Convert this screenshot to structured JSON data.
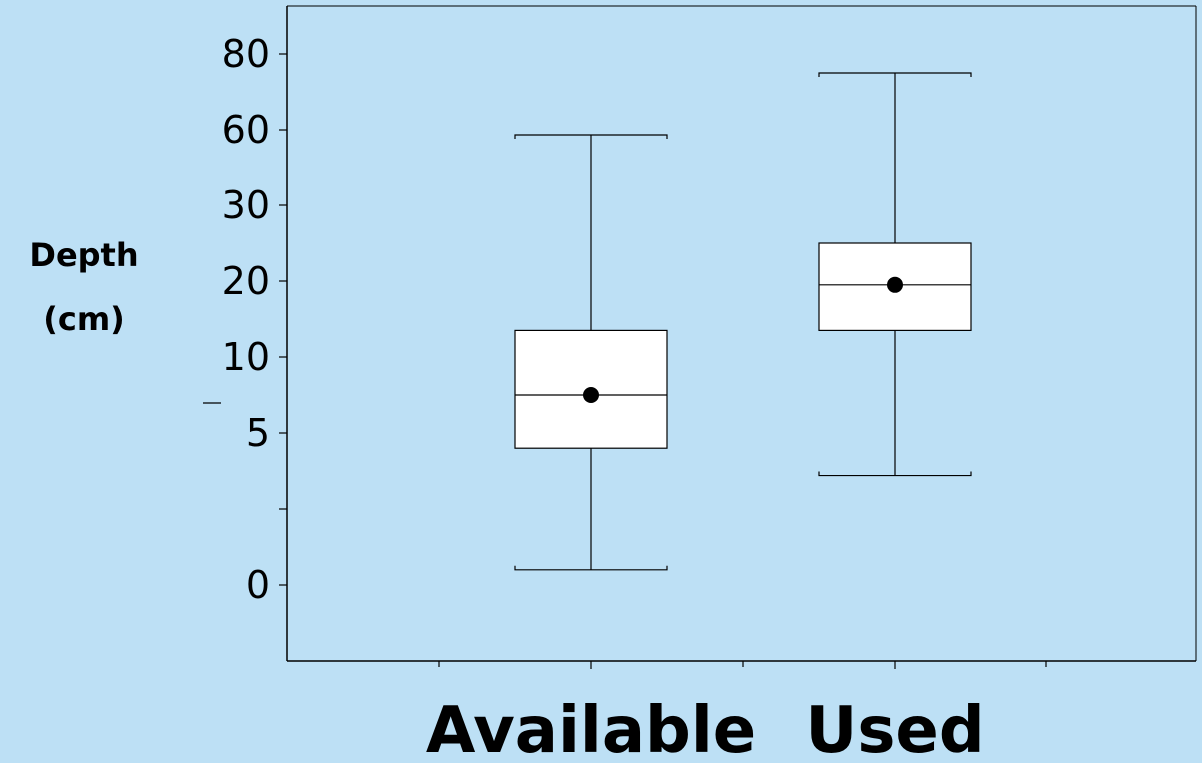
{
  "chart_data": {
    "type": "boxplot",
    "title": "",
    "xlabel": "",
    "ylabel_lines": [
      "Depth",
      "(cm)"
    ],
    "y_scale": "nonlinear (ticks evenly spaced)",
    "y_ticks": [
      {
        "value": "0",
        "label": "0"
      },
      {
        "value": "2.5",
        "label": ""
      },
      {
        "value": "5",
        "label": "5"
      },
      {
        "value": "10",
        "label": "10"
      },
      {
        "value": "20",
        "label": "20"
      },
      {
        "value": "30",
        "label": "30"
      },
      {
        "value": "60",
        "label": "60"
      },
      {
        "value": "80",
        "label": "80"
      }
    ],
    "categories": [
      "Available",
      "Used"
    ],
    "boxes": [
      {
        "category": "Available",
        "whisker_low": 0.5,
        "q1": 4.5,
        "median": 7.5,
        "mean": 7.5,
        "q3": 13.5,
        "whisker_high": 58
      },
      {
        "category": "Used",
        "whisker_low": 3.6,
        "q1": 13.5,
        "median": 19.5,
        "mean": 19.5,
        "q3": 25,
        "whisker_high": 75
      }
    ],
    "grid": false,
    "legend": "none"
  }
}
